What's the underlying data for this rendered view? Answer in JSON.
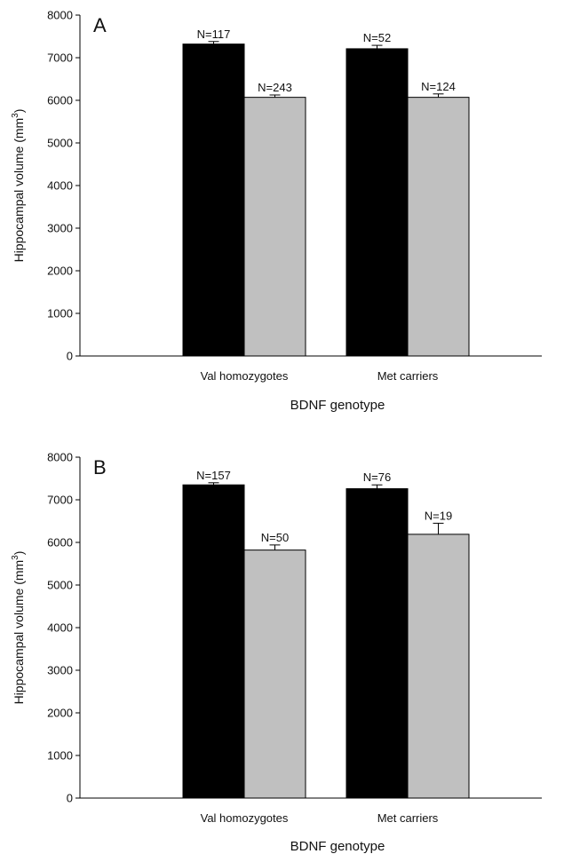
{
  "chart_data": [
    {
      "type": "bar",
      "panel_label": "A",
      "xlabel": "BDNF genotype",
      "ylabel": "Hippocampal volume (mm",
      "ylabel_superscript": "3",
      "ylabel_suffix": ")",
      "ylim": [
        0,
        8000
      ],
      "yticks": [
        0,
        1000,
        2000,
        3000,
        4000,
        5000,
        6000,
        7000,
        8000
      ],
      "categories": [
        "Val homozygotes",
        "Met carriers"
      ],
      "grid": false,
      "legend": "none",
      "series": [
        {
          "color": "#000000",
          "values": [
            7320,
            7210
          ],
          "errors": [
            60,
            80
          ],
          "n_labels": [
            "N=117",
            "N=52"
          ]
        },
        {
          "color": "#c0c0c0",
          "values": [
            6070,
            6070
          ],
          "errors": [
            55,
            80
          ],
          "n_labels": [
            "N=243",
            "N=124"
          ]
        }
      ]
    },
    {
      "type": "bar",
      "panel_label": "B",
      "xlabel": "BDNF genotype",
      "ylabel": "Hippocampal volume (mm",
      "ylabel_superscript": "3",
      "ylabel_suffix": ")",
      "ylim": [
        0,
        8000
      ],
      "yticks": [
        0,
        1000,
        2000,
        3000,
        4000,
        5000,
        6000,
        7000,
        8000
      ],
      "categories": [
        "Val homozygotes",
        "Met carriers"
      ],
      "grid": false,
      "legend": "none",
      "series": [
        {
          "color": "#000000",
          "values": [
            7350,
            7260
          ],
          "errors": [
            50,
            90
          ],
          "n_labels": [
            "N=157",
            "N=76"
          ]
        },
        {
          "color": "#c0c0c0",
          "values": [
            5820,
            6190
          ],
          "errors": [
            120,
            260
          ],
          "n_labels": [
            "N=50",
            "N=19"
          ]
        }
      ]
    }
  ]
}
